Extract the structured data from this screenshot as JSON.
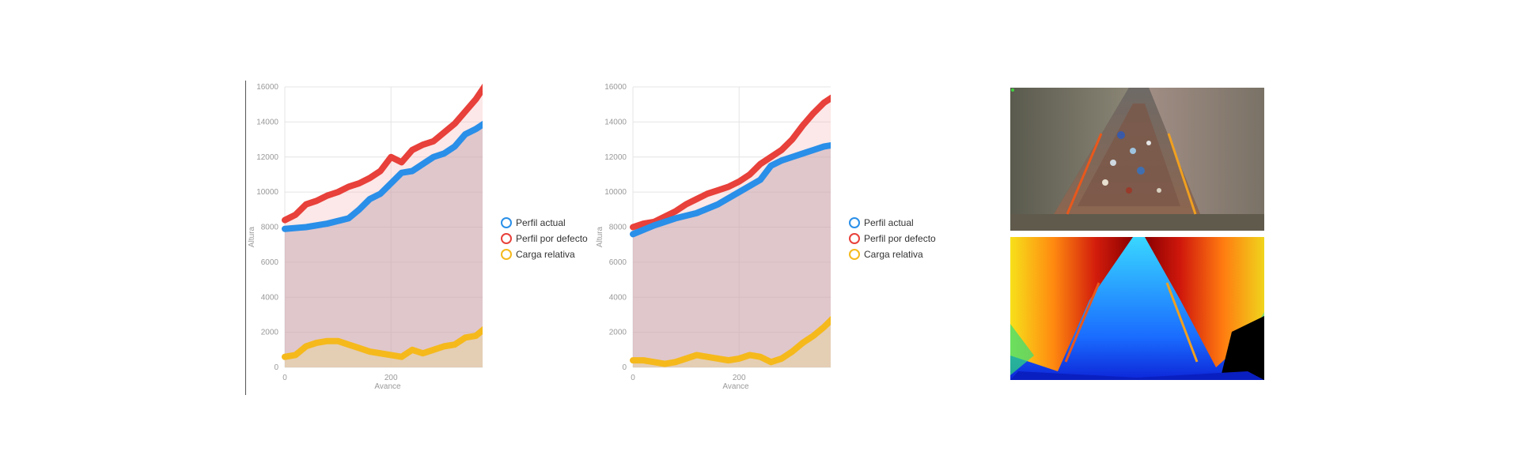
{
  "legend": {
    "items": [
      {
        "label": "Perfil actual",
        "color": "#2a8fe8"
      },
      {
        "label": "Perfil por defecto",
        "color": "#e8403a"
      },
      {
        "label": "Carga relativa",
        "color": "#f5b91c"
      }
    ]
  },
  "colors": {
    "perfil_actual": "#2a8fe8",
    "perfil_defecto": "#e8403a",
    "carga_relativa": "#f5b91c",
    "grid": "#cfcfcf",
    "axis_text": "#999999"
  },
  "chart_data": [
    {
      "type": "line",
      "xlabel": "Avance",
      "ylabel": "Altura",
      "xlim": [
        0,
        380
      ],
      "ylim": [
        0,
        16000
      ],
      "x_ticks": [
        0,
        200
      ],
      "y_ticks": [
        0,
        2000,
        4000,
        6000,
        8000,
        10000,
        12000,
        14000,
        16000
      ],
      "grid": true,
      "legend_position": "right",
      "series": [
        {
          "name": "Perfil actual",
          "x": [
            0,
            40,
            80,
            120,
            140,
            160,
            180,
            200,
            220,
            240,
            260,
            280,
            300,
            320,
            340,
            360,
            380
          ],
          "values": [
            7900,
            8000,
            8200,
            8500,
            9000,
            9600,
            9900,
            10500,
            11100,
            11200,
            11600,
            12000,
            12200,
            12600,
            13300,
            13600,
            14000
          ]
        },
        {
          "name": "Perfil por defecto",
          "x": [
            0,
            20,
            40,
            60,
            80,
            100,
            120,
            140,
            160,
            180,
            200,
            220,
            240,
            260,
            280,
            300,
            320,
            340,
            360,
            380
          ],
          "values": [
            8400,
            8700,
            9300,
            9500,
            9800,
            10000,
            10300,
            10500,
            10800,
            11200,
            12000,
            11700,
            12400,
            12700,
            12900,
            13400,
            13900,
            14600,
            15300,
            16200
          ]
        },
        {
          "name": "Carga relativa",
          "x": [
            0,
            20,
            40,
            60,
            80,
            100,
            120,
            140,
            160,
            180,
            200,
            220,
            240,
            260,
            280,
            300,
            320,
            340,
            360,
            380
          ],
          "values": [
            600,
            700,
            1200,
            1400,
            1500,
            1500,
            1300,
            1100,
            900,
            800,
            700,
            600,
            1000,
            800,
            1000,
            1200,
            1300,
            1700,
            1800,
            2300
          ]
        }
      ]
    },
    {
      "type": "line",
      "xlabel": "Avance",
      "ylabel": "Altura",
      "xlim": [
        0,
        380
      ],
      "ylim": [
        0,
        16000
      ],
      "x_ticks": [
        0,
        200
      ],
      "y_ticks": [
        0,
        2000,
        4000,
        6000,
        8000,
        10000,
        12000,
        14000,
        16000
      ],
      "grid": true,
      "legend_position": "right",
      "series": [
        {
          "name": "Perfil actual",
          "x": [
            0,
            40,
            80,
            120,
            160,
            200,
            240,
            260,
            280,
            300,
            320,
            340,
            360,
            380
          ],
          "values": [
            7600,
            8100,
            8500,
            8800,
            9300,
            10000,
            10700,
            11500,
            11800,
            12000,
            12200,
            12400,
            12600,
            12700
          ]
        },
        {
          "name": "Perfil por defecto",
          "x": [
            0,
            20,
            40,
            60,
            80,
            100,
            120,
            140,
            160,
            180,
            200,
            220,
            240,
            260,
            280,
            300,
            320,
            340,
            360,
            380
          ],
          "values": [
            8000,
            8200,
            8300,
            8600,
            8900,
            9300,
            9600,
            9900,
            10100,
            10300,
            10600,
            11000,
            11600,
            12000,
            12400,
            13000,
            13800,
            14500,
            15100,
            15500
          ]
        },
        {
          "name": "Carga relativa",
          "x": [
            0,
            20,
            40,
            60,
            80,
            100,
            120,
            140,
            160,
            180,
            200,
            220,
            240,
            260,
            280,
            300,
            320,
            340,
            360,
            380
          ],
          "values": [
            400,
            400,
            300,
            200,
            300,
            500,
            700,
            600,
            500,
            400,
            500,
            700,
            600,
            300,
            500,
            900,
            1400,
            1800,
            2300,
            2900
          ]
        }
      ]
    }
  ],
  "camera": {
    "rgb_view": {
      "icon": "camera-rgb-feed"
    },
    "depth_view": {
      "icon": "camera-depth-map"
    }
  }
}
